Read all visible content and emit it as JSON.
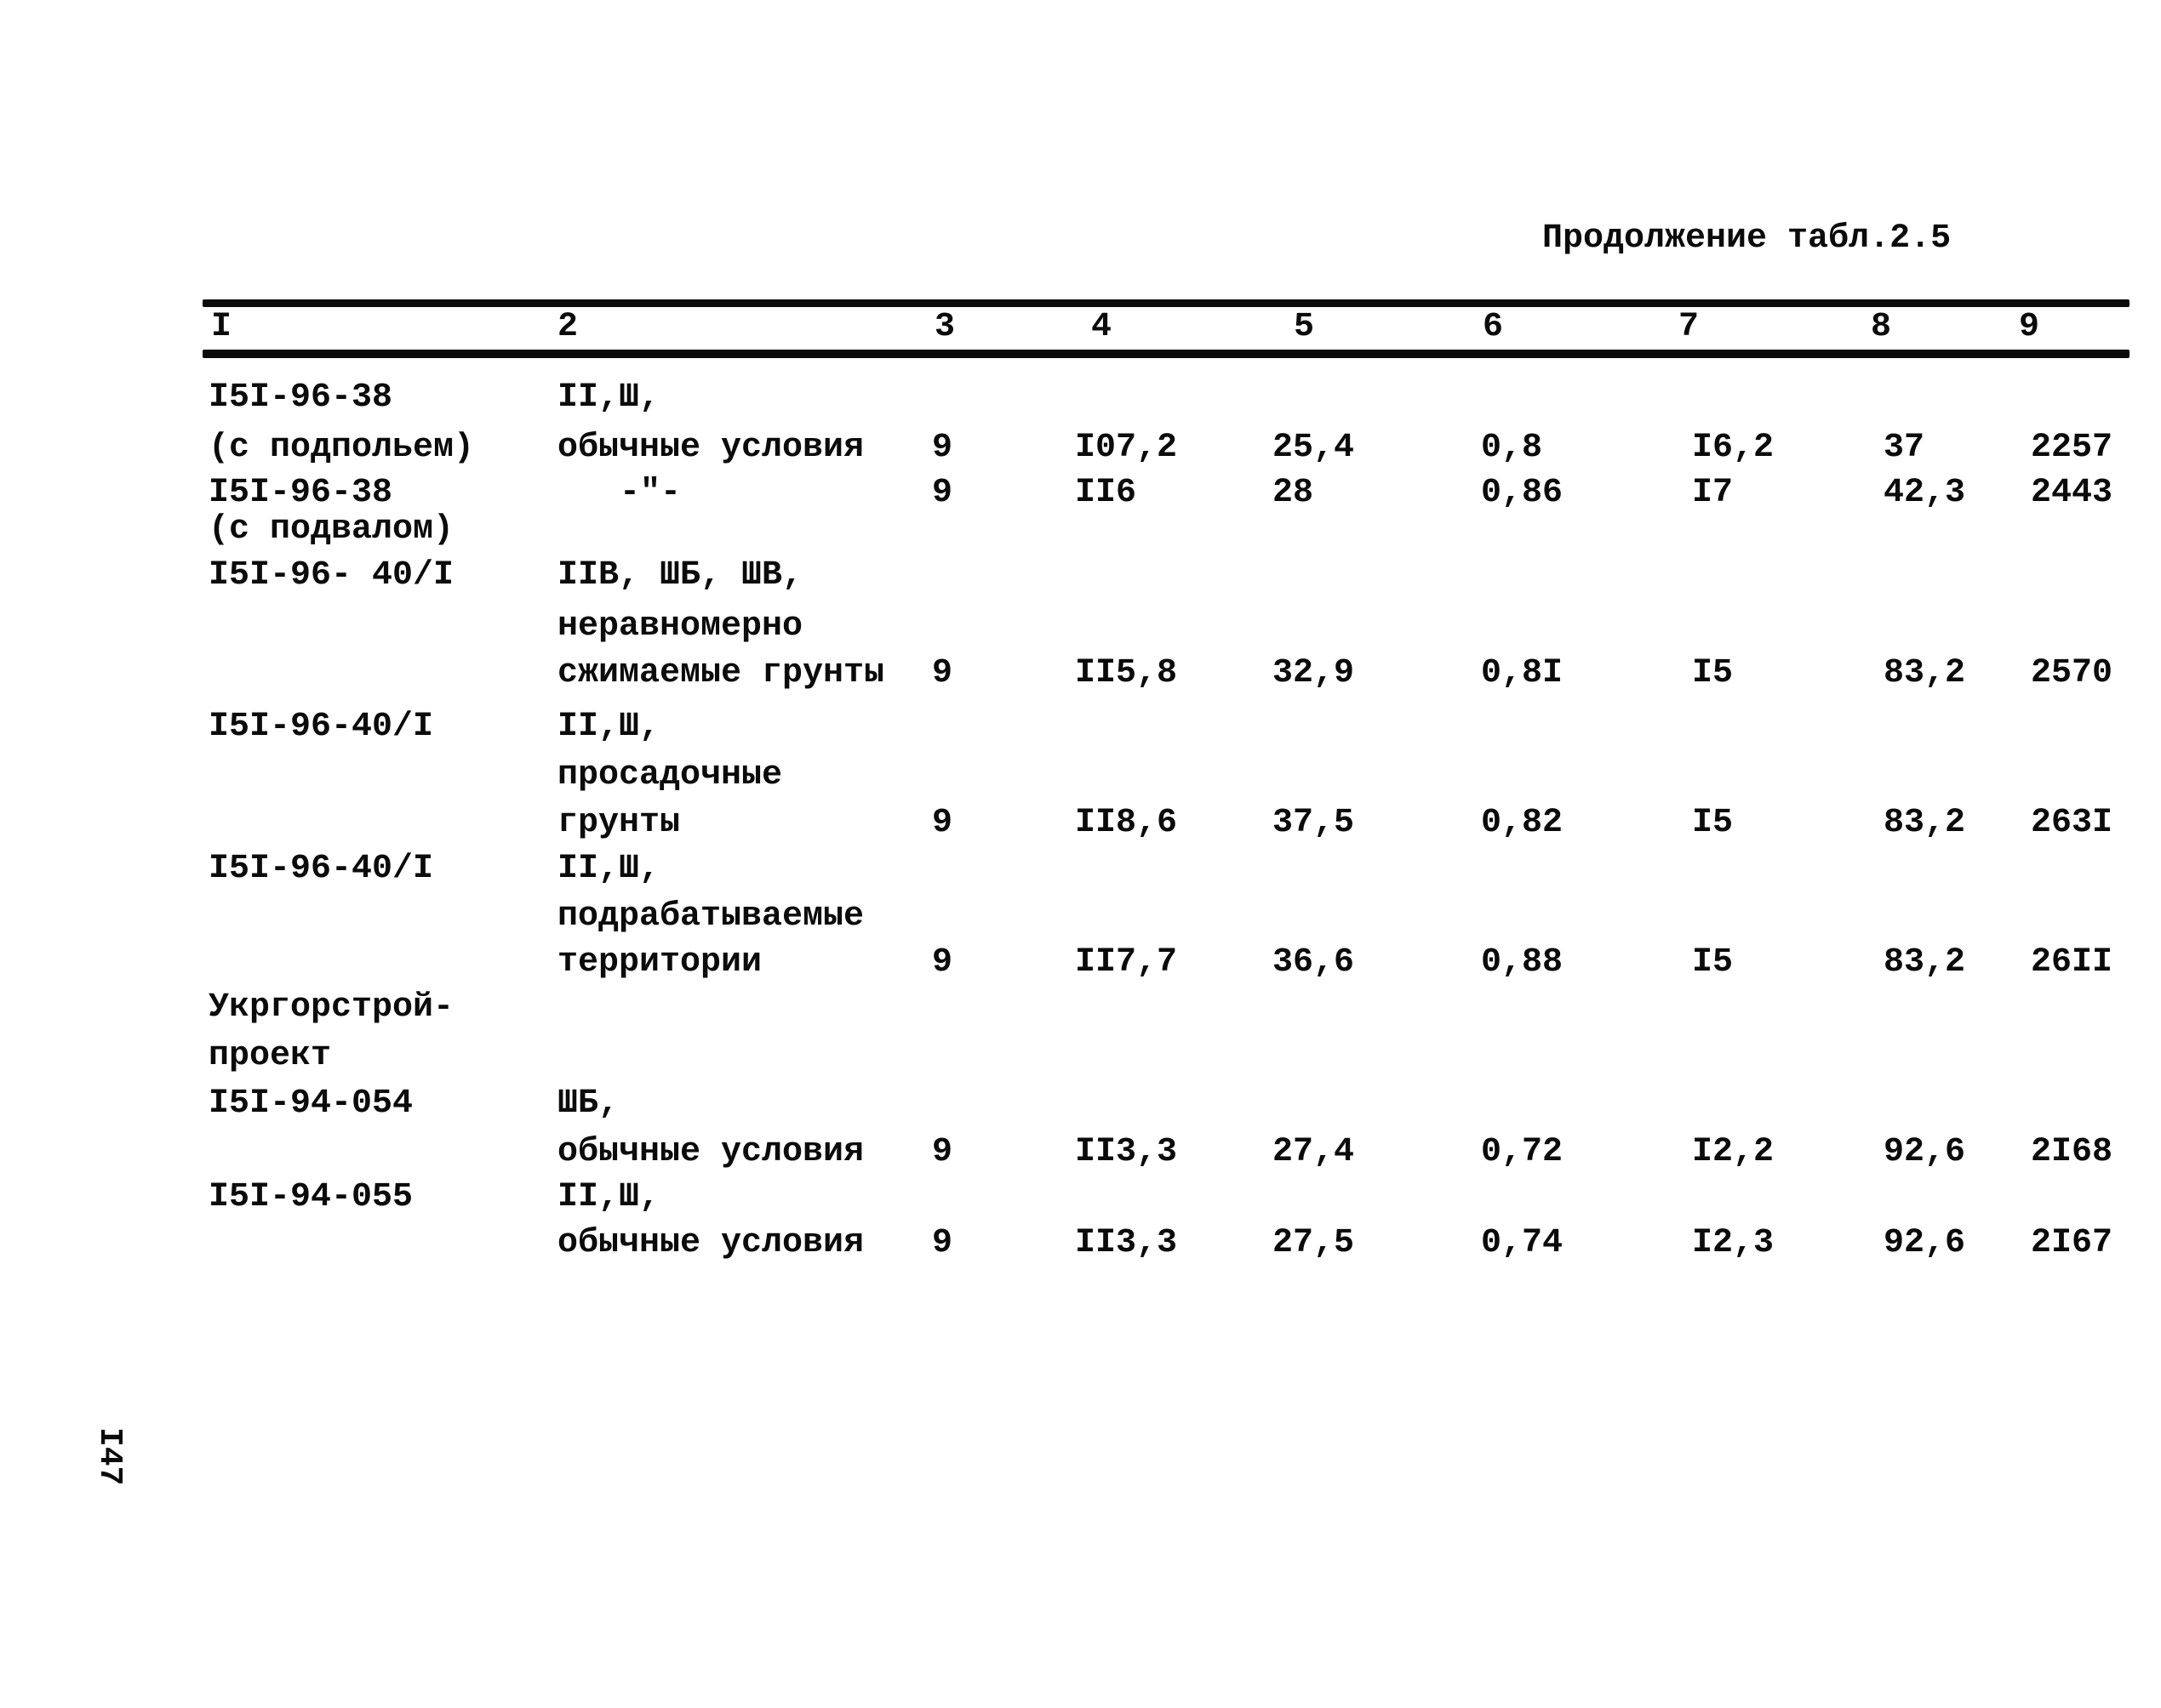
{
  "page": {
    "title": "Продолжение табл.2.5",
    "page_number": "I47"
  },
  "table": {
    "column_headers": [
      "I",
      "2",
      "3",
      "4",
      "5",
      "6",
      "7",
      "8",
      "9"
    ],
    "lines": [
      {
        "c1": "I5I-96-38",
        "c2": "II,Ш,"
      },
      {
        "c1": "(с подпольем)",
        "c2": "обычные условия",
        "c3": "9",
        "c4": "I07,2",
        "c5": "25,4",
        "c6": "0,8",
        "c7": "I6,2",
        "c8": "37",
        "c9": "2257"
      },
      {
        "c1": "I5I-96-38",
        "c2d": "-\"-",
        "c3": "9",
        "c4": "II6",
        "c5": "28",
        "c6": "0,86",
        "c7": "I7",
        "c8": "42,3",
        "c9": "2443"
      },
      {
        "c1": "(с подвалом)"
      },
      {
        "c1": "I5I-96- 40/I",
        "c2": "IIВ, ШБ, ШВ,"
      },
      {
        "c2": "неравномерно"
      },
      {
        "c2": "сжимаемые грунты",
        "c3": "9",
        "c4": "II5,8",
        "c5": "32,9",
        "c6": "0,8I",
        "c7": "I5",
        "c8": "83,2",
        "c9": "2570"
      },
      {
        "c1": "I5I-96-40/I",
        "c2": "II,Ш,"
      },
      {
        "c2": "просадочные"
      },
      {
        "c2": "грунты",
        "c3": "9",
        "c4": "II8,6",
        "c5": "37,5",
        "c6": "0,82",
        "c7": "I5",
        "c8": "83,2",
        "c9": "263I"
      },
      {
        "c1": "I5I-96-40/I",
        "c2": "II,Ш,"
      },
      {
        "c2": "подрабатываемые"
      },
      {
        "c2": "территории",
        "c3": "9",
        "c4": "II7,7",
        "c5": "36,6",
        "c6": "0,88",
        "c7": "I5",
        "c8": "83,2",
        "c9": "26II"
      },
      {
        "c1": "Укргорстрой-"
      },
      {
        "c1": "проект"
      },
      {
        "c1": "I5I-94-054",
        "c2": "ШБ,"
      },
      {
        "c2": "обычные условия",
        "c3": "9",
        "c4": "II3,3",
        "c5": "27,4",
        "c6": "0,72",
        "c7": "I2,2",
        "c8": "92,6",
        "c9": "2I68"
      },
      {
        "c1": "I5I-94-055",
        "c2": "II,Ш,"
      },
      {
        "c2": "обычные условия",
        "c3": "9",
        "c4": "II3,3",
        "c5": "27,5",
        "c6": "0,74",
        "c7": "I2,3",
        "c8": "92,6",
        "c9": "2I67"
      }
    ]
  }
}
